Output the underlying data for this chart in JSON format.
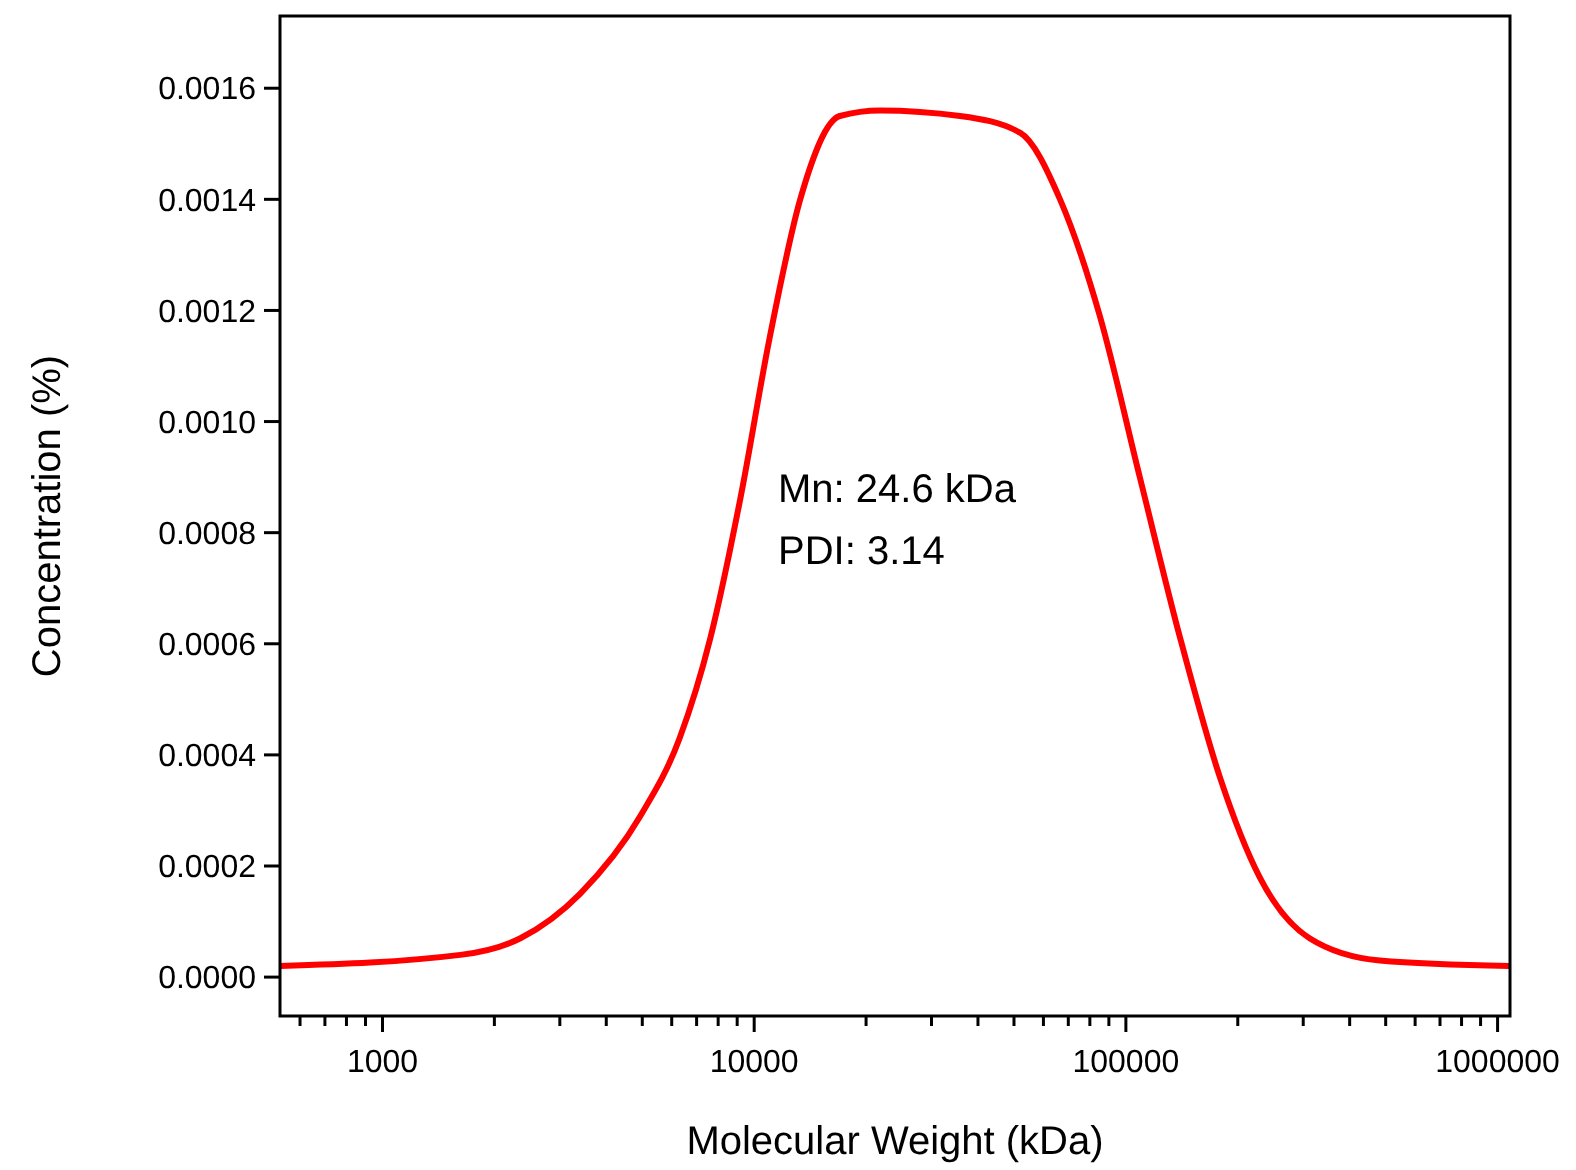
{
  "chart_data": {
    "type": "line",
    "xlabel": "Molecular Weight (kDa)",
    "ylabel": "Concentration (%)",
    "log": "x",
    "grid": false,
    "marker": "none",
    "line_style": "solid",
    "xlim": [
      530,
      1080000
    ],
    "xticks": [
      {
        "value": 600,
        "label": null
      },
      {
        "value": 700,
        "label": null
      },
      {
        "value": 800,
        "label": null
      },
      {
        "value": 900,
        "label": null
      },
      1000,
      {
        "value": 2000,
        "label": null
      },
      {
        "value": 3000,
        "label": null
      },
      {
        "value": 4000,
        "label": null
      },
      {
        "value": 5000,
        "label": null
      },
      {
        "value": 6000,
        "label": null
      },
      {
        "value": 7000,
        "label": null
      },
      {
        "value": 8000,
        "label": null
      },
      {
        "value": 9000,
        "label": null
      },
      10000,
      {
        "value": 20000,
        "label": null
      },
      {
        "value": 30000,
        "label": null
      },
      {
        "value": 40000,
        "label": null
      },
      {
        "value": 50000,
        "label": null
      },
      {
        "value": 60000,
        "label": null
      },
      {
        "value": 70000,
        "label": null
      },
      {
        "value": 80000,
        "label": null
      },
      {
        "value": 90000,
        "label": null
      },
      100000,
      {
        "value": 200000,
        "label": null
      },
      {
        "value": 300000,
        "label": null
      },
      {
        "value": 400000,
        "label": null
      },
      {
        "value": 500000,
        "label": null
      },
      {
        "value": 600000,
        "label": null
      },
      {
        "value": 700000,
        "label": null
      },
      {
        "value": 800000,
        "label": null
      },
      {
        "value": 900000,
        "label": null
      },
      1000000
    ],
    "ylim": [
      -7e-05,
      0.00173
    ],
    "yticks": [
      {
        "value": 0,
        "label": "0.0000"
      },
      {
        "value": 0.0002,
        "label": "0.0002"
      },
      {
        "value": 0.0004,
        "label": "0.0004"
      },
      {
        "value": 0.0006,
        "label": "0.0006"
      },
      {
        "value": 0.0008,
        "label": "0.0008"
      },
      {
        "value": 0.001,
        "label": "0.0010"
      },
      {
        "value": 0.0012,
        "label": "0.0012"
      },
      {
        "value": 0.0014,
        "label": "0.0014"
      },
      {
        "value": 0.0016,
        "label": "0.0016"
      }
    ],
    "annotations": [
      "Mn: 24.6 kDa",
      "PDI: 3.14"
    ],
    "series": [
      {
        "color": "#ff0000",
        "x": [
          530,
          1620,
          2350,
          3400,
          4940,
          6300,
          7620,
          9170,
          11000,
          13300,
          17000,
          21800,
          35800,
          51900,
          66500,
          85100,
          109000,
          140000,
          179000,
          229000,
          312000,
          482000,
          1077000
        ],
        "values": [
          2e-05,
          4e-05,
          7e-05,
          0.00015,
          0.00029,
          0.00043,
          0.00061,
          0.00086,
          0.00115,
          0.0014,
          0.00155,
          0.00156,
          0.00155,
          0.00152,
          0.0014,
          0.00119,
          0.0009,
          0.00061,
          0.00036,
          0.00018,
          7e-05,
          3e-05,
          2e-05
        ]
      }
    ]
  }
}
